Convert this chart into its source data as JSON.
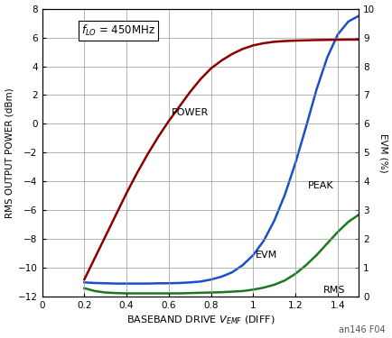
{
  "caption": "an146 F04",
  "xlim": [
    0,
    1.5
  ],
  "ylim_left": [
    -12,
    8
  ],
  "ylim_right": [
    0,
    10
  ],
  "xticks": [
    0,
    0.2,
    0.4,
    0.6,
    0.8,
    1.0,
    1.2,
    1.4
  ],
  "yticks_left": [
    -12,
    -10,
    -8,
    -6,
    -4,
    -2,
    0,
    2,
    4,
    6,
    8
  ],
  "yticks_right": [
    0,
    1,
    2,
    3,
    4,
    5,
    6,
    7,
    8,
    9,
    10
  ],
  "power_x": [
    0.2,
    0.25,
    0.3,
    0.35,
    0.4,
    0.45,
    0.5,
    0.55,
    0.6,
    0.65,
    0.7,
    0.75,
    0.8,
    0.85,
    0.9,
    0.95,
    1.0,
    1.05,
    1.1,
    1.15,
    1.2,
    1.25,
    1.3,
    1.35,
    1.4,
    1.45,
    1.5
  ],
  "power_y": [
    -10.8,
    -9.3,
    -7.8,
    -6.3,
    -4.8,
    -3.4,
    -2.1,
    -0.9,
    0.2,
    1.2,
    2.2,
    3.1,
    3.85,
    4.4,
    4.85,
    5.2,
    5.45,
    5.6,
    5.7,
    5.75,
    5.78,
    5.8,
    5.82,
    5.83,
    5.84,
    5.85,
    5.85
  ],
  "peak_evm_x": [
    0.2,
    0.25,
    0.3,
    0.35,
    0.4,
    0.45,
    0.5,
    0.55,
    0.6,
    0.65,
    0.7,
    0.75,
    0.8,
    0.85,
    0.9,
    0.95,
    1.0,
    1.05,
    1.1,
    1.15,
    1.2,
    1.25,
    1.3,
    1.35,
    1.4,
    1.45,
    1.5
  ],
  "peak_evm_y": [
    0.5,
    0.48,
    0.47,
    0.46,
    0.46,
    0.46,
    0.46,
    0.47,
    0.47,
    0.48,
    0.5,
    0.53,
    0.6,
    0.7,
    0.85,
    1.1,
    1.45,
    1.95,
    2.65,
    3.55,
    4.65,
    5.9,
    7.2,
    8.3,
    9.1,
    9.55,
    9.75
  ],
  "rms_evm_x": [
    0.2,
    0.25,
    0.3,
    0.35,
    0.4,
    0.45,
    0.5,
    0.55,
    0.6,
    0.65,
    0.7,
    0.75,
    0.8,
    0.85,
    0.9,
    0.95,
    1.0,
    1.05,
    1.1,
    1.15,
    1.2,
    1.25,
    1.3,
    1.35,
    1.4,
    1.45,
    1.5
  ],
  "rms_evm_y": [
    0.3,
    0.2,
    0.15,
    0.13,
    0.12,
    0.12,
    0.12,
    0.12,
    0.12,
    0.12,
    0.13,
    0.14,
    0.15,
    0.16,
    0.18,
    0.2,
    0.25,
    0.32,
    0.42,
    0.57,
    0.8,
    1.1,
    1.45,
    1.85,
    2.25,
    2.6,
    2.85
  ],
  "power_color": "#8B0000",
  "peak_color": "#1a4fcc",
  "rms_color": "#1a7a1a",
  "background_color": "#ffffff",
  "grid_color": "#999999"
}
